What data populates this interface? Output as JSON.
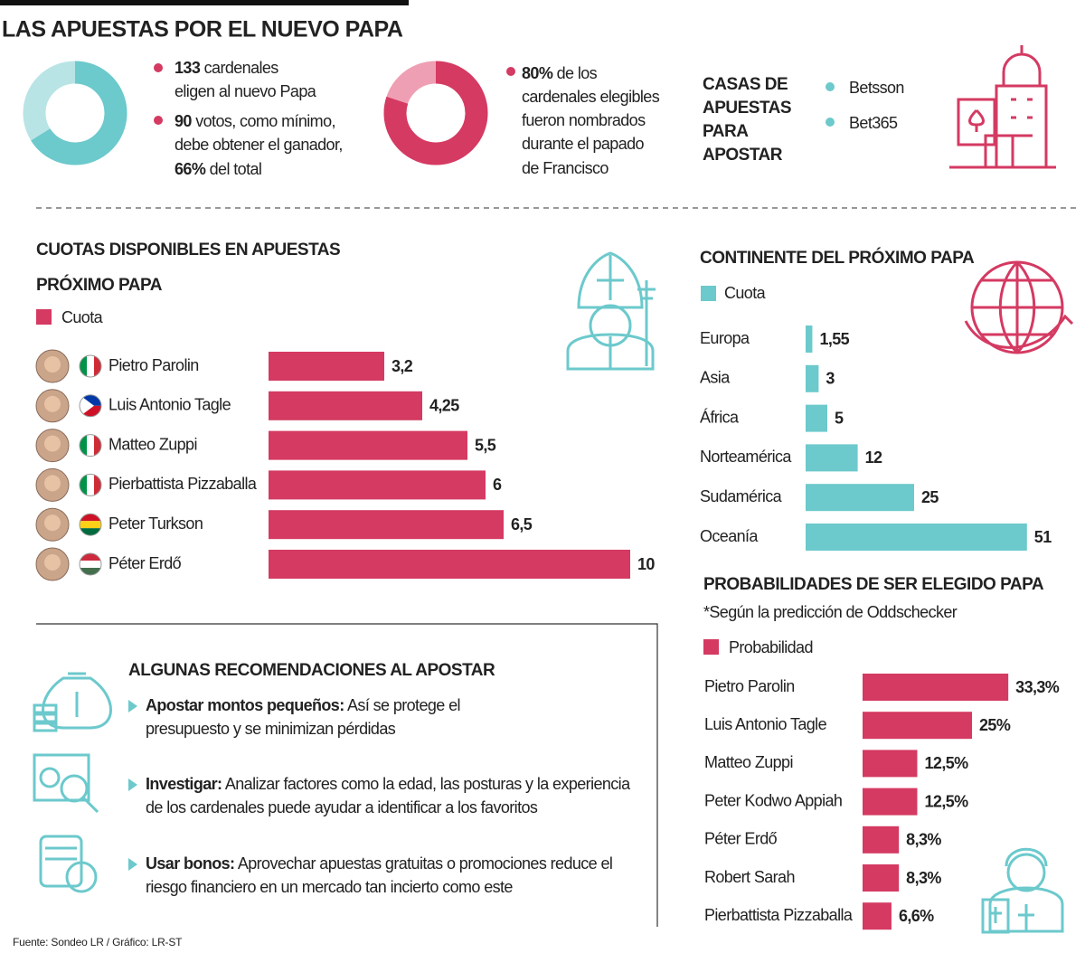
{
  "title": "LAS APUESTAS POR EL NUEVO PAPA",
  "intro": [
    {
      "bold": "133",
      "lines": [
        " cardenales",
        "eligen al nuevo Papa"
      ]
    },
    {
      "bold": "90",
      "lines": [
        " votos, como mínimo,",
        "debe obtener el ganador,",
        " del total"
      ]
    },
    {
      "lines": [
        " de los",
        "cardenales elegibles",
        "fueron nombrados",
        "durante el papado",
        "de Francisco"
      ]
    }
  ],
  "betting_houses": {
    "title": [
      "CASAS DE",
      "APUESTAS",
      "PARA",
      "APOSTAR"
    ],
    "items": [
      "Betsson",
      "Bet365"
    ]
  },
  "chart_data": [
    {
      "type": "donut",
      "values": [
        66
      ],
      "value_labels": [
        "66%"
      ],
      "color": "#6cc9cc",
      "track_color": "#b9e4e5"
    },
    {
      "type": "donut",
      "values": [
        80
      ],
      "value_labels": [
        "80%"
      ],
      "color": "#d43a62",
      "track_color": "#ef9fb4"
    },
    {
      "type": "bar",
      "title": "CUOTAS DISPONIBLES EN APUESTAS",
      "subtitle": "PRÓXIMO PAPA",
      "categories": [
        "Pietro Parolin",
        "Luis Antonio Tagle",
        "Matteo Zuppi",
        "Pierbattista Pizzaballa",
        "Peter Turkson",
        "Péter Erdő"
      ],
      "series": [
        {
          "name": "Cuota",
          "color": "#d43a62",
          "values": [
            3.2,
            4.25,
            5.5,
            6,
            6.5,
            10
          ],
          "value_labels": [
            "3,2",
            "4,25",
            "5,5",
            "6",
            "6,5",
            "10"
          ]
        }
      ]
    },
    {
      "type": "bar",
      "title": "CONTINENTE DEL PRÓXIMO PAPA",
      "categories": [
        "Europa",
        "Asia",
        "África",
        "Norteamérica",
        "Sudamérica",
        "Oceanía"
      ],
      "series": [
        {
          "name": "Cuota",
          "color": "#6cc9cc",
          "values": [
            1.55,
            3,
            5,
            12,
            25,
            51
          ],
          "value_labels": [
            "1,55",
            "3",
            "5",
            "12",
            "25",
            "51"
          ]
        }
      ]
    },
    {
      "type": "bar",
      "title": "PROBABILIDADES DE SER ELEGIDO PAPA",
      "subtitle": "*Según la predicción de Oddschecker",
      "categories": [
        "Pietro Parolin",
        "Luis Antonio Tagle",
        "Matteo Zuppi",
        "Peter Kodwo Appiah",
        "Péter Erdő",
        "Robert Sarah",
        "Pierbattista Pizzaballa"
      ],
      "series": [
        {
          "name": "Probabilidad",
          "color": "#d43a62",
          "values": [
            33.3,
            25,
            12.5,
            12.5,
            8.3,
            8.3,
            6.6
          ],
          "value_labels": [
            "33,3%",
            "25%",
            "12,5%",
            "12,5%",
            "8,3%",
            "8,3%",
            "6,6%"
          ]
        }
      ]
    }
  ],
  "recommendations": {
    "title": "ALGUNAS RECOMENDACIONES AL APOSTAR",
    "items": [
      {
        "bold": "Apostar montos pequeños:",
        "lines": [
          " Así se protege el",
          "presupuesto y se minimizan pérdidas"
        ]
      },
      {
        "bold": "Investigar:",
        "lines": [
          " Analizar factores como la edad, las posturas y la experiencia",
          "de los cardenales puede ayudar a identificar a los favoritos"
        ]
      },
      {
        "bold": "Usar bonos:",
        "lines": [
          " Aprovechar apuestas gratuitas o promociones reduce el",
          "riesgo financiero en un mercado tan incierto como este"
        ]
      }
    ]
  },
  "source": "Fuente: Sondeo LR / Gráfico: LR-ST"
}
